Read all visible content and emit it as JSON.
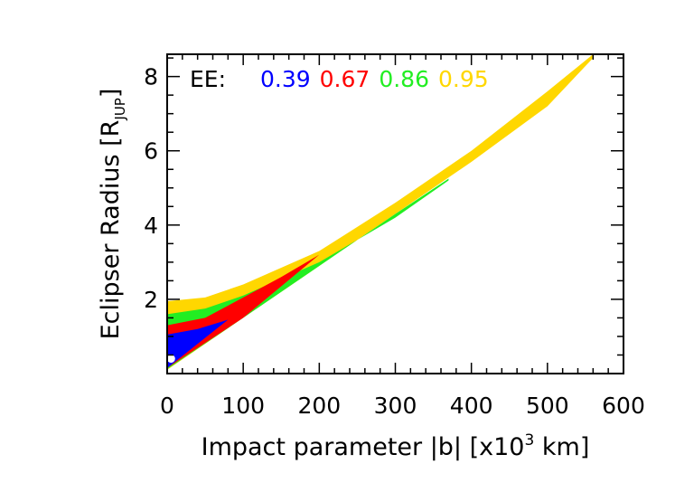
{
  "chart_data": {
    "type": "area",
    "title": "",
    "xlabel": "Impact parameter |b| [x10",
    "xlabel_sup": "3",
    "xlabel_tail": " km]",
    "ylabel": "Eclipser Radius [R",
    "ylabel_sub": "JUP",
    "ylabel_tail": "]",
    "xlim": [
      0,
      600
    ],
    "ylim": [
      0,
      8.6
    ],
    "x_ticks": [
      0,
      100,
      200,
      300,
      400,
      500,
      600
    ],
    "y_ticks": [
      2,
      4,
      6,
      8
    ],
    "grid": false,
    "legend_placement": "top-left",
    "legend_prefix": "EE:",
    "series": [
      {
        "name": "0.95",
        "color": "#FFD700",
        "upper": [
          [
            0,
            1.95
          ],
          [
            50,
            2.05
          ],
          [
            100,
            2.4
          ],
          [
            200,
            3.3
          ],
          [
            300,
            4.6
          ],
          [
            400,
            6.0
          ],
          [
            500,
            7.6
          ],
          [
            560,
            8.6
          ]
        ],
        "lower": [
          [
            0,
            0.1
          ],
          [
            100,
            1.5
          ],
          [
            200,
            2.9
          ],
          [
            300,
            4.3
          ],
          [
            400,
            5.7
          ],
          [
            500,
            7.2
          ],
          [
            560,
            8.5
          ]
        ]
      },
      {
        "name": "0.86",
        "color": "#22EE22",
        "upper": [
          [
            0,
            1.6
          ],
          [
            50,
            1.75
          ],
          [
            100,
            2.1
          ],
          [
            200,
            3.0
          ],
          [
            300,
            4.2
          ],
          [
            370,
            5.2
          ]
        ],
        "lower": [
          [
            0,
            0.12
          ],
          [
            100,
            1.5
          ],
          [
            200,
            2.9
          ],
          [
            300,
            4.3
          ],
          [
            370,
            5.25
          ]
        ]
      },
      {
        "name": "0.67",
        "color": "#FF0000",
        "upper": [
          [
            0,
            1.3
          ],
          [
            50,
            1.5
          ],
          [
            100,
            2.05
          ],
          [
            150,
            2.6
          ],
          [
            200,
            3.2
          ]
        ],
        "lower": [
          [
            0,
            0.15
          ],
          [
            100,
            1.5
          ],
          [
            200,
            3.2
          ]
        ]
      },
      {
        "name": "0.39",
        "color": "#0000FF",
        "upper": [
          [
            0,
            1.05
          ],
          [
            40,
            1.2
          ],
          [
            80,
            1.45
          ]
        ],
        "lower": [
          [
            0,
            0.15
          ],
          [
            80,
            1.45
          ]
        ]
      }
    ],
    "legend_order": [
      "0.39",
      "0.67",
      "0.86",
      "0.95"
    ],
    "marker": {
      "x": 1.5,
      "y": 0.4,
      "color": "#ffffff"
    }
  }
}
